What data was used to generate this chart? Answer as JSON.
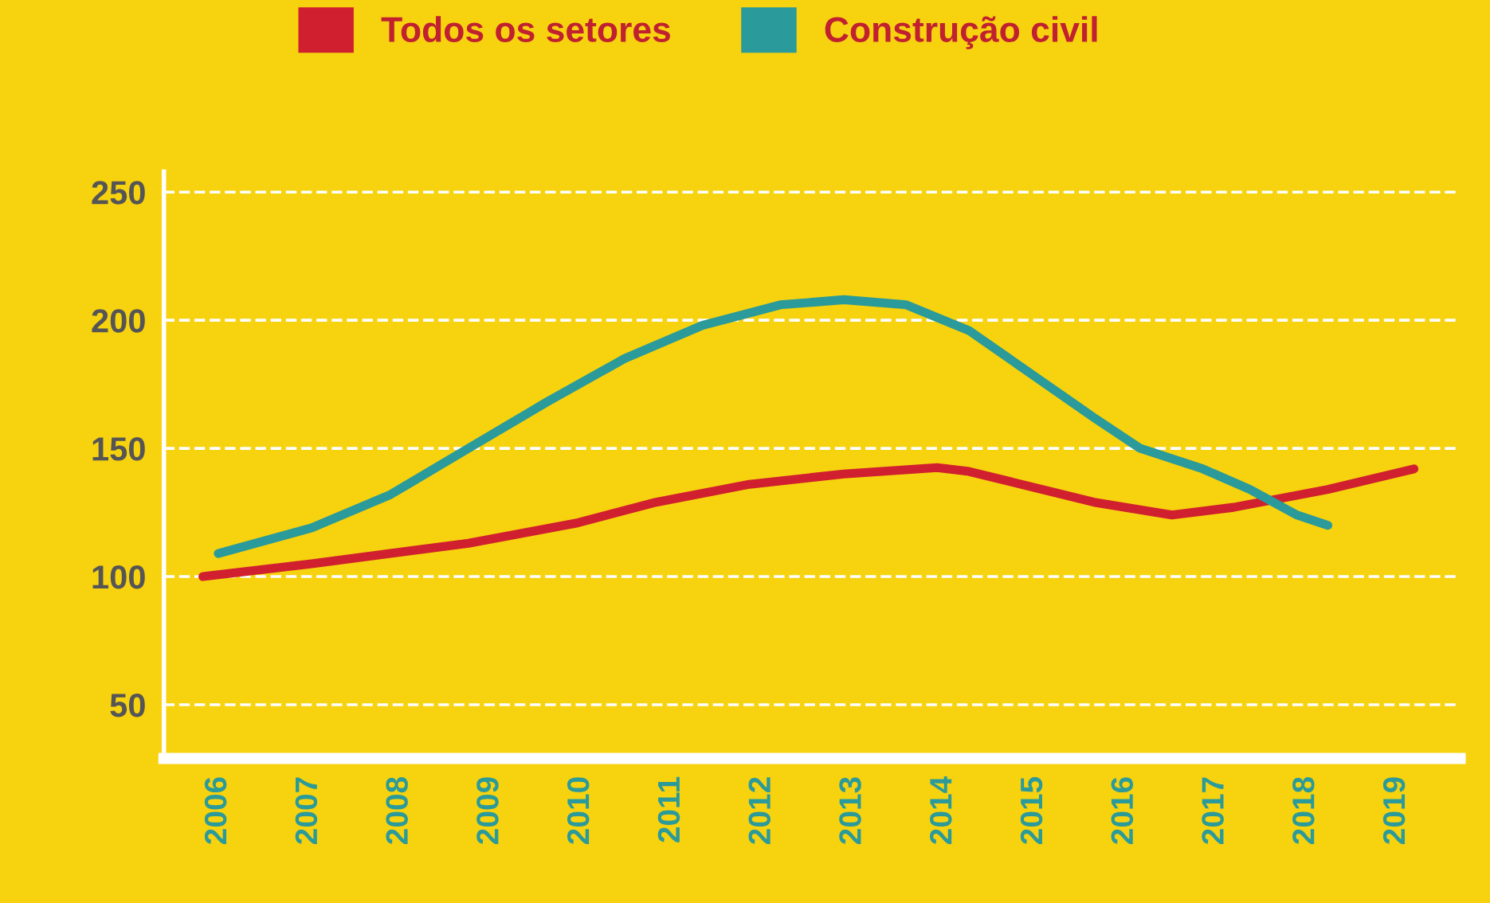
{
  "chart_data": {
    "type": "line",
    "series": [
      {
        "name": "Todos os setores",
        "color": "#d0202f",
        "x": [
          2005.83,
          2007.03,
          2008.76,
          2009.97,
          2010.83,
          2011.86,
          2012.9,
          2013.93,
          2014.28,
          2014.97,
          2015.66,
          2016.52,
          2017.2,
          2018.24,
          2019.19
        ],
        "values": [
          100,
          105,
          113,
          121,
          129,
          136,
          140,
          142.5,
          141,
          135,
          129,
          124,
          127,
          134,
          142
        ]
      },
      {
        "name": "Construção civil",
        "color": "#2a9a9a",
        "x": [
          2006,
          2007.03,
          2007.9,
          2008.76,
          2009.62,
          2010.48,
          2011.34,
          2012.2,
          2012.9,
          2013.59,
          2014.28,
          2014.97,
          2015.66,
          2016.17,
          2016.86,
          2017.38,
          2017.9,
          2018.24
        ],
        "values": [
          109,
          119,
          132,
          150,
          168,
          185,
          198,
          206,
          208,
          206,
          196,
          179,
          162,
          150,
          142,
          134,
          124,
          120
        ]
      }
    ],
    "xlim": [
      2005.4,
      2019.7
    ],
    "xticks": [
      2006,
      2007,
      2008,
      2009,
      2010,
      2011,
      2012,
      2013,
      2014,
      2015,
      2016,
      2017,
      2018,
      2019
    ],
    "ylim": [
      29,
      258
    ],
    "yticks": [
      50,
      100,
      150,
      200,
      250
    ],
    "grid": "y",
    "legend": "top left",
    "marker": "none",
    "line_style": "solid"
  }
}
